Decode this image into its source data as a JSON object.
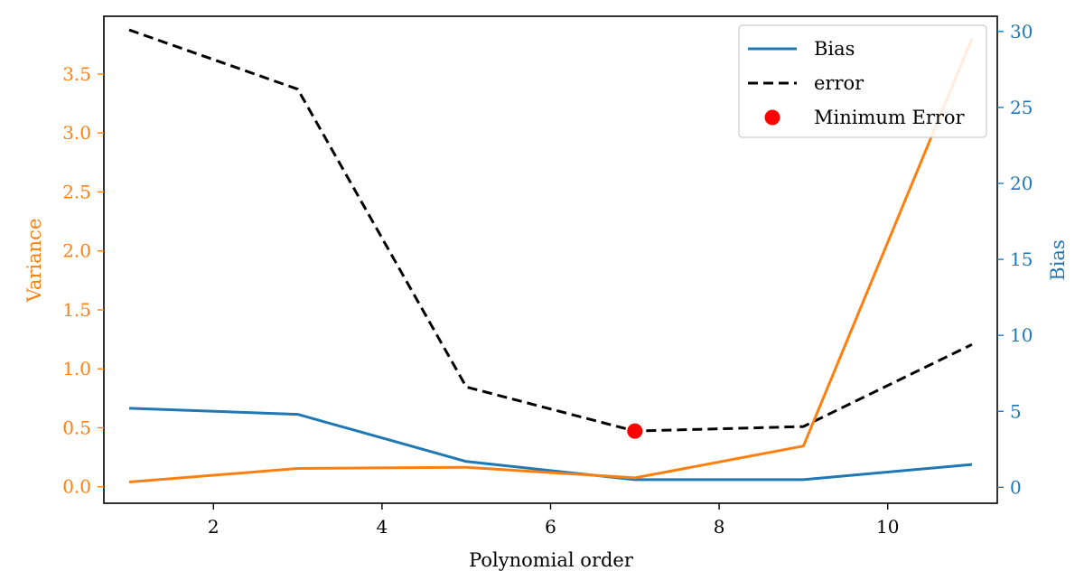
{
  "chart_data": {
    "type": "line",
    "title": "",
    "xlabel": "Polynomial order",
    "ylabel_left": "Variance",
    "ylabel_right": "Bias",
    "xlim": [
      0.7,
      11.3
    ],
    "xticks": [
      2,
      4,
      6,
      8,
      10
    ],
    "ylim_left": [
      -0.14,
      3.99
    ],
    "yticks_left": [
      "0.0",
      "0.5",
      "1.0",
      "1.5",
      "2.0",
      "2.5",
      "3.0",
      "3.5"
    ],
    "ylim_right": [
      -1.05,
      31.0
    ],
    "yticks_right": [
      "0",
      "5",
      "10",
      "15",
      "20",
      "25",
      "30"
    ],
    "x": [
      1,
      3,
      5,
      7,
      9,
      11
    ],
    "series": [
      {
        "name": "Bias",
        "axis": "right",
        "color": "#1f77b4",
        "style": "solid",
        "values": [
          5.2,
          4.8,
          1.7,
          0.5,
          0.5,
          1.5
        ]
      },
      {
        "name": "error",
        "axis": "right",
        "color": "#000000",
        "style": "dashed",
        "values": [
          30.1,
          26.2,
          6.6,
          3.7,
          4.0,
          9.4
        ]
      },
      {
        "name": "",
        "axis": "left",
        "color": "#ff7f0e",
        "style": "solid",
        "values": [
          0.04,
          0.155,
          0.165,
          0.075,
          0.345,
          3.8
        ]
      }
    ],
    "marker": {
      "name": "Minimum Error",
      "axis": "right",
      "x": 7,
      "y": 3.7,
      "color": "#ff0000"
    },
    "legend_position": "top-right",
    "grid": false
  }
}
